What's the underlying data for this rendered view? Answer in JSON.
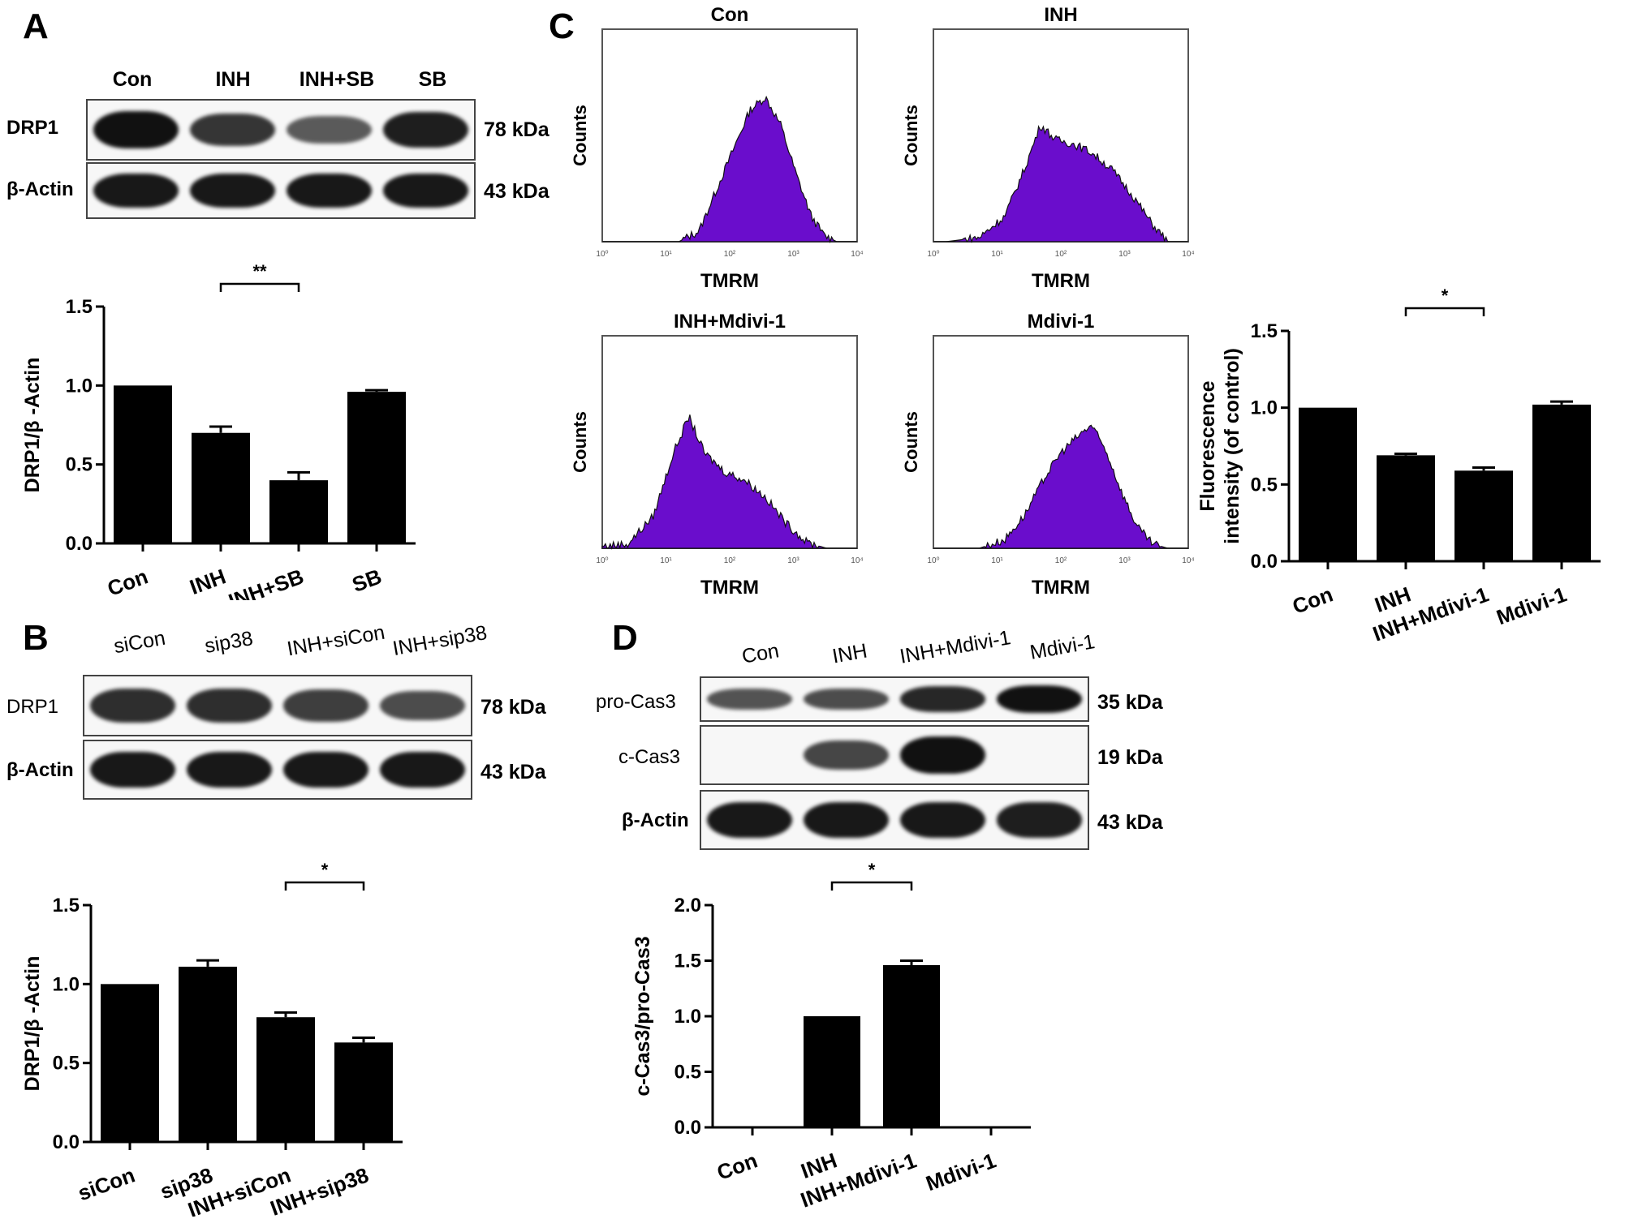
{
  "panels": {
    "A": {
      "letter": "A",
      "lanes": [
        "Con",
        "INH",
        "INH+SB",
        "SB"
      ],
      "rows": [
        {
          "label": "DRP1",
          "kda": "78 kDa",
          "intensity": [
            1.0,
            0.75,
            0.5,
            0.9
          ]
        },
        {
          "label": "β-Actin",
          "kda": "43 kDa",
          "intensity": [
            0.95,
            0.95,
            0.95,
            0.95
          ]
        }
      ]
    },
    "B": {
      "letter": "B",
      "lanes": [
        "siCon",
        "sip38",
        "INH+siCon",
        "INH+sip38"
      ],
      "rows": [
        {
          "label": "DRP1",
          "kda": "78 kDa",
          "intensity": [
            0.8,
            0.8,
            0.7,
            0.6
          ]
        },
        {
          "label": "β-Actin",
          "kda": "43 kDa",
          "intensity": [
            0.95,
            0.95,
            0.95,
            0.95
          ]
        }
      ]
    },
    "C": {
      "letter": "C",
      "histograms": [
        {
          "title": "Con",
          "ylabel": "Counts",
          "xlabel": "TMRM",
          "xticks": [
            "10⁰",
            "10¹",
            "10²",
            "10³",
            "10⁴"
          ]
        },
        {
          "title": "INH",
          "ylabel": "Counts",
          "xlabel": "TMRM",
          "xticks": [
            "10⁰",
            "10¹",
            "10²",
            "10³",
            "10⁴"
          ]
        },
        {
          "title": "INH+Mdivi-1",
          "ylabel": "Counts",
          "xlabel": "TMRM",
          "xticks": [
            "10⁰",
            "10¹",
            "10²",
            "10³",
            "10⁴"
          ]
        },
        {
          "title": "Mdivi-1",
          "ylabel": "Counts",
          "xlabel": "TMRM",
          "xticks": [
            "10⁰",
            "10¹",
            "10²",
            "10³",
            "10⁴"
          ]
        }
      ],
      "histogram_color": "#6a0dcc"
    },
    "D": {
      "letter": "D",
      "lanes": [
        "Con",
        "INH",
        "INH+Mdivi-1",
        "Mdivi-1"
      ],
      "rows": [
        {
          "label": "pro-Cas3",
          "kda": "35 kDa",
          "intensity": [
            0.55,
            0.6,
            0.85,
            1.0
          ]
        },
        {
          "label": "c-Cas3",
          "kda": "19 kDa",
          "intensity": [
            0.0,
            0.65,
            1.0,
            0.0
          ]
        },
        {
          "label": "β-Actin",
          "kda": "43 kDa",
          "intensity": [
            0.95,
            0.95,
            0.95,
            0.9
          ]
        }
      ]
    }
  },
  "chart_data": [
    {
      "id": "A",
      "type": "bar",
      "categories": [
        "Con",
        "INH",
        "INH+SB",
        "SB"
      ],
      "values": [
        1.0,
        0.7,
        0.4,
        0.96
      ],
      "errors": [
        0.0,
        0.04,
        0.05,
        0.01
      ],
      "ylabel": "DRP1/β -Actin",
      "ylim": [
        0,
        1.5
      ],
      "yticks": [
        "0.0",
        "0.5",
        "1.0",
        "1.5"
      ],
      "significance": [
        {
          "from": 1,
          "to": 2,
          "label": "**"
        }
      ]
    },
    {
      "id": "B",
      "type": "bar",
      "categories": [
        "siCon",
        "sip38",
        "INH+siCon",
        "INH+sip38"
      ],
      "values": [
        1.0,
        1.11,
        0.79,
        0.63
      ],
      "errors": [
        0.0,
        0.04,
        0.03,
        0.03
      ],
      "ylabel": "DRP1/β -Actin",
      "ylim": [
        0,
        1.5
      ],
      "yticks": [
        "0.0",
        "0.5",
        "1.0",
        "1.5"
      ],
      "significance": [
        {
          "from": 2,
          "to": 3,
          "label": "*"
        }
      ]
    },
    {
      "id": "C",
      "type": "bar",
      "categories": [
        "Con",
        "INH",
        "INH+Mdivi-1",
        "Mdivi-1"
      ],
      "values": [
        1.0,
        0.69,
        0.59,
        1.02
      ],
      "errors": [
        0.0,
        0.01,
        0.02,
        0.02
      ],
      "ylabel": "Fluorescence intensity (of control)",
      "ylim": [
        0,
        1.5
      ],
      "yticks": [
        "0.0",
        "0.5",
        "1.0",
        "1.5"
      ],
      "significance": [
        {
          "from": 1,
          "to": 2,
          "label": "*"
        }
      ]
    },
    {
      "id": "D",
      "type": "bar",
      "categories": [
        "Con",
        "INH",
        "INH+Mdivi-1",
        "Mdivi-1"
      ],
      "values": [
        0.0,
        1.0,
        1.46,
        0.0
      ],
      "errors": [
        0.0,
        0.0,
        0.04,
        0.0
      ],
      "ylabel": "c-Cas3/pro-Cas3",
      "ylim": [
        0,
        2.0
      ],
      "yticks": [
        "0.0",
        "0.5",
        "1.0",
        "1.5",
        "2.0"
      ],
      "significance": [
        {
          "from": 1,
          "to": 2,
          "label": "*"
        }
      ]
    }
  ]
}
